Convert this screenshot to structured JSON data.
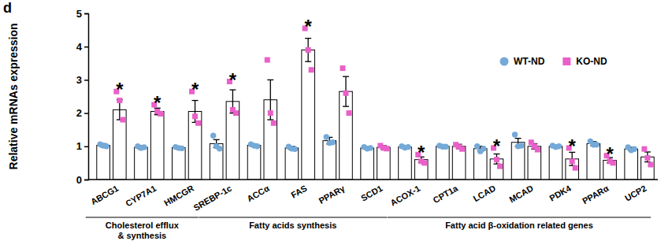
{
  "chart_data": {
    "type": "bar",
    "panel_label": "d",
    "y_label": "Relative mRNAs expression",
    "categories": [
      "ABCG1",
      "CYP7A1",
      "HMCGR",
      "SREBP-1c",
      "ACCα",
      "FAS",
      "PPARγ",
      "SCD1",
      "ACOX-1",
      "CPT1a",
      "LCAD",
      "MCAD",
      "PDK4",
      "PPARα",
      "UCP2"
    ],
    "series": [
      {
        "name": "WT-ND",
        "color": "#74a9d8",
        "marker": "circle",
        "values": [
          1.03,
          0.97,
          0.96,
          1.08,
          1.03,
          0.95,
          1.17,
          0.95,
          0.98,
          1.0,
          0.93,
          1.12,
          1.0,
          1.08,
          0.92
        ],
        "errors": [
          0.05,
          0.05,
          0.04,
          0.12,
          0.04,
          0.05,
          0.1,
          0.04,
          0.03,
          0.03,
          0.07,
          0.12,
          0.03,
          0.06,
          0.05
        ],
        "points": [
          [
            1.06,
            1.02,
            1.0
          ],
          [
            1.0,
            0.95,
            0.97
          ],
          [
            0.98,
            0.95,
            0.94
          ],
          [
            1.32,
            1.0,
            0.93
          ],
          [
            1.06,
            1.02,
            1.0
          ],
          [
            0.99,
            0.93,
            0.92
          ],
          [
            1.28,
            1.1,
            1.12
          ],
          [
            0.98,
            0.93,
            0.95
          ],
          [
            1.0,
            0.96,
            0.98
          ],
          [
            1.02,
            0.99,
            0.99
          ],
          [
            1.0,
            0.85,
            0.93
          ],
          [
            1.35,
            1.0,
            1.02
          ],
          [
            1.02,
            0.98,
            1.0
          ],
          [
            1.15,
            1.05,
            1.05
          ],
          [
            0.97,
            0.88,
            0.92
          ]
        ]
      },
      {
        "name": "KO-ND",
        "color": "#ea5fc9",
        "marker": "square",
        "values": [
          2.1,
          2.05,
          2.05,
          2.35,
          2.4,
          3.9,
          2.65,
          0.97,
          0.6,
          1.0,
          0.62,
          1.0,
          0.62,
          0.58,
          0.68
        ],
        "errors": [
          0.3,
          0.1,
          0.33,
          0.35,
          0.6,
          0.35,
          0.45,
          0.05,
          0.08,
          0.06,
          0.15,
          0.08,
          0.2,
          0.08,
          0.15
        ],
        "points": [
          [
            2.65,
            2.38,
            1.8
          ],
          [
            2.25,
            2.05,
            1.98
          ],
          [
            2.65,
            1.9,
            1.7
          ],
          [
            2.95,
            2.1,
            2.0
          ],
          [
            3.6,
            2.0,
            1.7
          ],
          [
            4.55,
            3.9,
            3.3
          ],
          [
            3.35,
            2.6,
            2.0
          ],
          [
            1.02,
            0.95,
            0.93
          ],
          [
            0.75,
            0.55,
            0.5
          ],
          [
            1.05,
            0.98,
            0.92
          ],
          [
            0.95,
            0.6,
            0.4
          ],
          [
            1.12,
            1.0,
            0.9
          ],
          [
            0.95,
            0.55,
            0.35
          ],
          [
            0.72,
            0.55,
            0.5
          ],
          [
            0.92,
            0.65,
            0.45
          ]
        ]
      }
    ],
    "ylim": [
      0,
      5
    ],
    "yticks": [
      0,
      1,
      2,
      3,
      4,
      5
    ],
    "grid": false,
    "legend": "upper right",
    "groups": [
      {
        "label": [
          "Cholesterol efflux",
          "& synthesis"
        ],
        "categories": [
          "ABCG1",
          "CYP7A1",
          "HMCGR"
        ]
      },
      {
        "label": [
          "Fatty acids synthesis"
        ],
        "categories": [
          "SREBP-1c",
          "ACCα",
          "FAS",
          "PPARγ",
          "SCD1"
        ]
      },
      {
        "label": [
          "Fatty acid β-oxidation related genes"
        ],
        "categories": [
          "ACOX-1",
          "CPT1a",
          "LCAD",
          "MCAD",
          "PDK4",
          "PPARα",
          "UCP2"
        ]
      }
    ],
    "annotations": [
      {
        "category": "ABCG1",
        "series": "KO-ND",
        "text": "*"
      },
      {
        "category": "CYP7A1",
        "series": "KO-ND",
        "text": "*"
      },
      {
        "category": "HMCGR",
        "series": "KO-ND",
        "text": "*"
      },
      {
        "category": "SREBP-1c",
        "series": "KO-ND",
        "text": "*"
      },
      {
        "category": "FAS",
        "series": "KO-ND",
        "text": "*"
      },
      {
        "category": "ACOX-1",
        "series": "KO-ND",
        "text": "*"
      },
      {
        "category": "LCAD",
        "series": "KO-ND",
        "text": "*"
      },
      {
        "category": "PDK4",
        "series": "KO-ND",
        "text": "*"
      },
      {
        "category": "PPARα",
        "series": "KO-ND",
        "text": "*"
      }
    ]
  }
}
